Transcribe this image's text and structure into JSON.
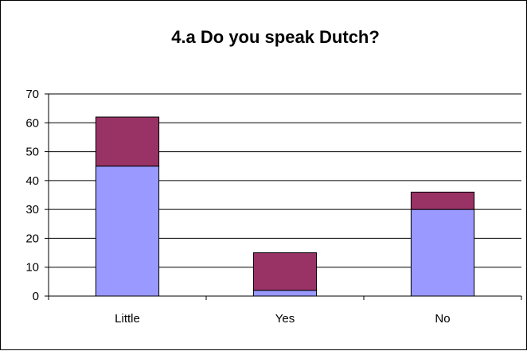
{
  "chart_data": {
    "type": "bar",
    "stacked": true,
    "title": "4.a Do you speak Dutch?",
    "xlabel": "",
    "ylabel": "",
    "categories": [
      "Little",
      "Yes",
      "No"
    ],
    "series": [
      {
        "values": [
          45,
          2,
          30
        ],
        "color": "#9999ff"
      },
      {
        "values": [
          17,
          13,
          6
        ],
        "color": "#993366"
      }
    ],
    "ylim": [
      0,
      70
    ],
    "yticks": [
      0,
      10,
      20,
      30,
      40,
      50,
      60,
      70
    ],
    "grid": true,
    "legend": "none"
  }
}
